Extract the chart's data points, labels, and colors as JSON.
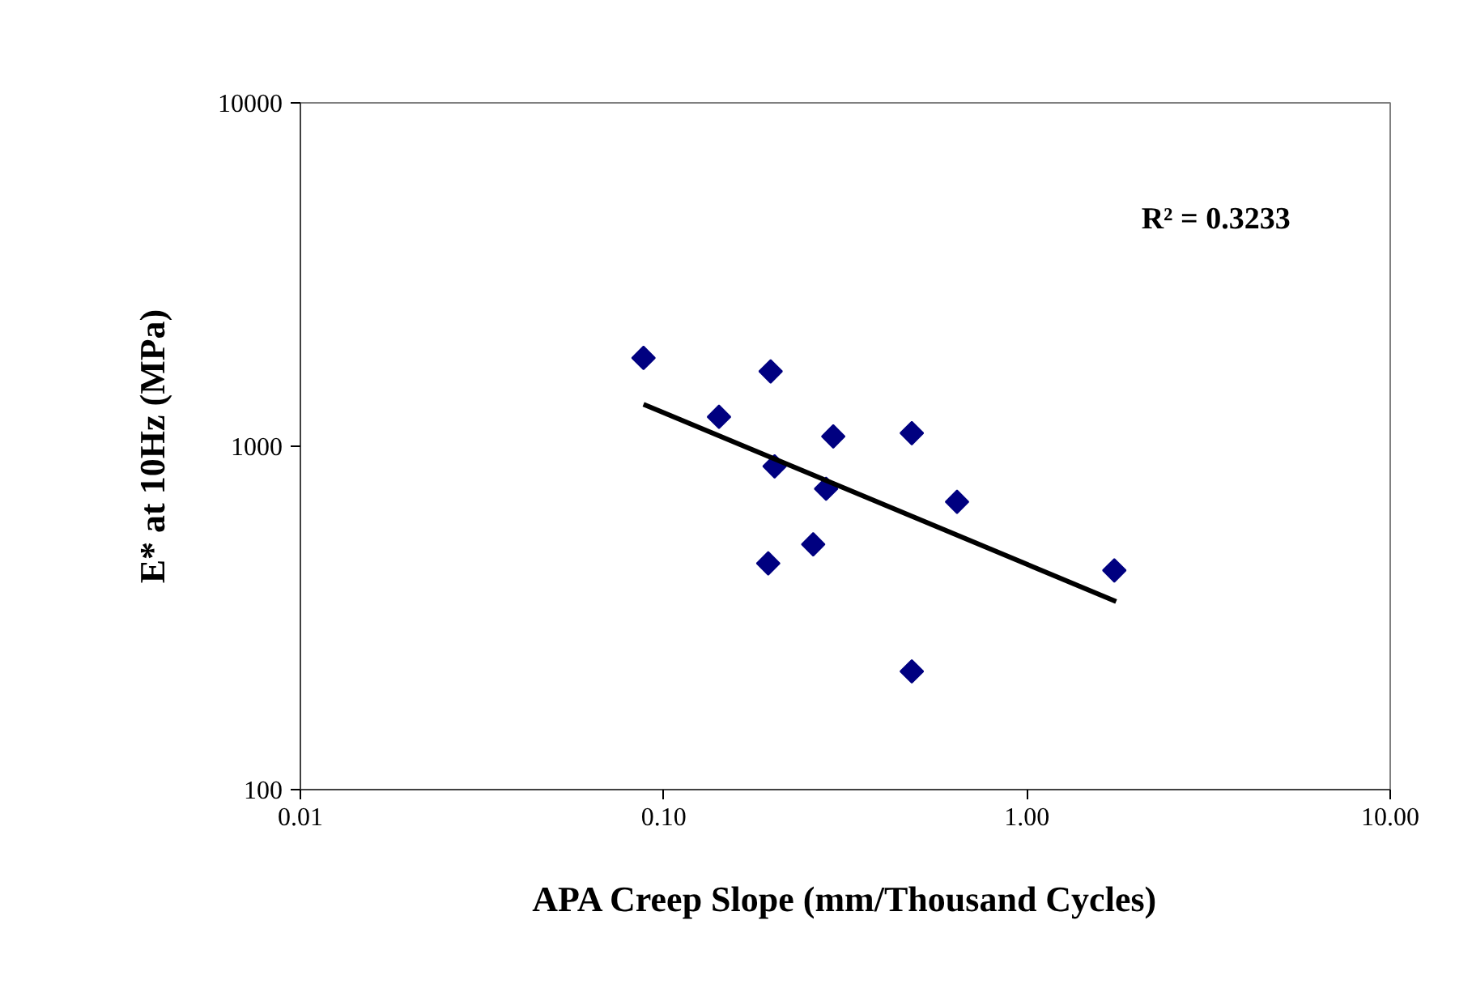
{
  "chart_data": {
    "type": "scatter",
    "xlabel": "APA Creep Slope (mm/Thousand Cycles)",
    "ylabel": "E* at 10Hz (MPa)",
    "log": "xy",
    "xlim": [
      0.01,
      10
    ],
    "ylim": [
      100,
      10000
    ],
    "xticks": [
      {
        "value": 0.01,
        "label": "0.01"
      },
      {
        "value": 0.1,
        "label": "0.10"
      },
      {
        "value": 1,
        "label": "1.00"
      },
      {
        "value": 10,
        "label": "10.00"
      }
    ],
    "yticks": [
      100,
      1000,
      10000
    ],
    "grid": false,
    "marker": "diamond",
    "annotations": [
      "R² = 0.3233"
    ],
    "series": [
      {
        "color": "#000080",
        "x": [
          0.088,
          0.197,
          0.142,
          0.293,
          0.482,
          0.202,
          0.28,
          0.642,
          0.258,
          0.194,
          0.482,
          1.74
        ],
        "values": [
          1808,
          1652,
          1218,
          1068,
          1092,
          874,
          752,
          689,
          518,
          456,
          221,
          435
        ]
      },
      {
        "type": "line",
        "color": "#000000",
        "line_style": "solid",
        "marker": "none",
        "x": [
          0.088,
          1.76
        ],
        "values": [
          1325,
          353
        ]
      }
    ]
  }
}
